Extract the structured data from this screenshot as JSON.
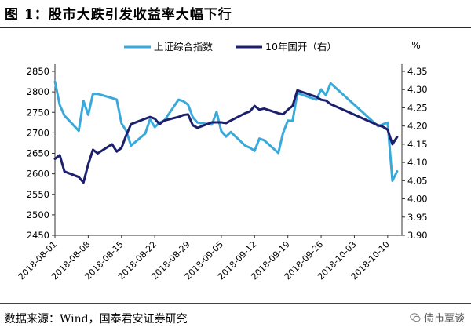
{
  "header": {
    "title": "图 1：股市大跌引发收益率大幅下行"
  },
  "footer": {
    "source": "数据来源：Wind，国泰君安证券研究",
    "watermark": "债市覃谈"
  },
  "chart_data": {
    "type": "line",
    "title": "",
    "xlabel": "",
    "y_right_unit": "%",
    "ylim_left": [
      2450,
      2850
    ],
    "ylim_right": [
      3.9,
      4.35
    ],
    "left_ticks": [
      "2850",
      "2800",
      "2750",
      "2700",
      "2650",
      "2600",
      "2550",
      "2500",
      "2450"
    ],
    "right_ticks": [
      "4.35",
      "4.30",
      "4.25",
      "4.20",
      "4.15",
      "4.10",
      "4.05",
      "4.00",
      "3.95",
      "3.90"
    ],
    "x_ticks": [
      "2018-08-01",
      "2018-08-08",
      "2018-08-15",
      "2018-08-22",
      "2018-08-29",
      "2018-09-05",
      "2018-09-12",
      "2018-09-19",
      "2018-09-26",
      "2018-10-03",
      "2018-10-10"
    ],
    "legend_position": "top",
    "series": [
      {
        "name": "上证综合指数",
        "axis": "left",
        "color": "#3aa9da",
        "points": [
          [
            "2018-08-01",
            2825
          ],
          [
            "2018-08-02",
            2768
          ],
          [
            "2018-08-03",
            2742
          ],
          [
            "2018-08-06",
            2705
          ],
          [
            "2018-08-07",
            2778
          ],
          [
            "2018-08-08",
            2744
          ],
          [
            "2018-08-09",
            2795
          ],
          [
            "2018-08-10",
            2795
          ],
          [
            "2018-08-13",
            2785
          ],
          [
            "2018-08-14",
            2781
          ],
          [
            "2018-08-15",
            2723
          ],
          [
            "2018-08-16",
            2705
          ],
          [
            "2018-08-17",
            2669
          ],
          [
            "2018-08-20",
            2698
          ],
          [
            "2018-08-21",
            2733
          ],
          [
            "2018-08-22",
            2714
          ],
          [
            "2018-08-23",
            2725
          ],
          [
            "2018-08-24",
            2730
          ],
          [
            "2018-08-27",
            2781
          ],
          [
            "2018-08-28",
            2777
          ],
          [
            "2018-08-29",
            2769
          ],
          [
            "2018-08-30",
            2738
          ],
          [
            "2018-08-31",
            2725
          ],
          [
            "2018-09-03",
            2720
          ],
          [
            "2018-09-04",
            2751
          ],
          [
            "2018-09-05",
            2704
          ],
          [
            "2018-09-06",
            2691
          ],
          [
            "2018-09-07",
            2702
          ],
          [
            "2018-09-10",
            2669
          ],
          [
            "2018-09-11",
            2664
          ],
          [
            "2018-09-12",
            2656
          ],
          [
            "2018-09-13",
            2686
          ],
          [
            "2018-09-14",
            2682
          ],
          [
            "2018-09-17",
            2651
          ],
          [
            "2018-09-18",
            2700
          ],
          [
            "2018-09-19",
            2730
          ],
          [
            "2018-09-20",
            2729
          ],
          [
            "2018-09-21",
            2797
          ],
          [
            "2018-09-25",
            2781
          ],
          [
            "2018-09-26",
            2806
          ],
          [
            "2018-09-27",
            2792
          ],
          [
            "2018-09-28",
            2821
          ],
          [
            "2018-10-08",
            2716
          ],
          [
            "2018-10-09",
            2721
          ],
          [
            "2018-10-10",
            2725
          ],
          [
            "2018-10-11",
            2583
          ],
          [
            "2018-10-12",
            2606
          ]
        ]
      },
      {
        "name": "10年国开（右）",
        "axis": "right",
        "color": "#1c1f6b",
        "points": [
          [
            "2018-08-01",
            4.11
          ],
          [
            "2018-08-02",
            4.12
          ],
          [
            "2018-08-03",
            4.075
          ],
          [
            "2018-08-06",
            4.06
          ],
          [
            "2018-08-07",
            4.045
          ],
          [
            "2018-08-08",
            4.095
          ],
          [
            "2018-08-09",
            4.135
          ],
          [
            "2018-08-10",
            4.125
          ],
          [
            "2018-08-13",
            4.15
          ],
          [
            "2018-08-14",
            4.13
          ],
          [
            "2018-08-15",
            4.14
          ],
          [
            "2018-08-16",
            4.175
          ],
          [
            "2018-08-17",
            4.205
          ],
          [
            "2018-08-20",
            4.22
          ],
          [
            "2018-08-21",
            4.225
          ],
          [
            "2018-08-22",
            4.22
          ],
          [
            "2018-08-23",
            4.205
          ],
          [
            "2018-08-24",
            4.215
          ],
          [
            "2018-08-27",
            4.225
          ],
          [
            "2018-08-28",
            4.23
          ],
          [
            "2018-08-29",
            4.232
          ],
          [
            "2018-08-30",
            4.202
          ],
          [
            "2018-08-31",
            4.195
          ],
          [
            "2018-09-03",
            4.21
          ],
          [
            "2018-09-04",
            4.21
          ],
          [
            "2018-09-05",
            4.21
          ],
          [
            "2018-09-06",
            4.208
          ],
          [
            "2018-09-07",
            4.215
          ],
          [
            "2018-09-10",
            4.235
          ],
          [
            "2018-09-11",
            4.24
          ],
          [
            "2018-09-12",
            4.255
          ],
          [
            "2018-09-13",
            4.245
          ],
          [
            "2018-09-14",
            4.248
          ],
          [
            "2018-09-17",
            4.235
          ],
          [
            "2018-09-18",
            4.232
          ],
          [
            "2018-09-19",
            4.245
          ],
          [
            "2018-09-20",
            4.255
          ],
          [
            "2018-09-21",
            4.298
          ],
          [
            "2018-09-25",
            4.28
          ],
          [
            "2018-09-26",
            4.272
          ],
          [
            "2018-09-27",
            4.27
          ],
          [
            "2018-09-28",
            4.26
          ],
          [
            "2018-10-08",
            4.202
          ],
          [
            "2018-10-09",
            4.198
          ],
          [
            "2018-10-10",
            4.19
          ],
          [
            "2018-10-11",
            4.15
          ],
          [
            "2018-10-12",
            4.17
          ]
        ]
      }
    ]
  }
}
